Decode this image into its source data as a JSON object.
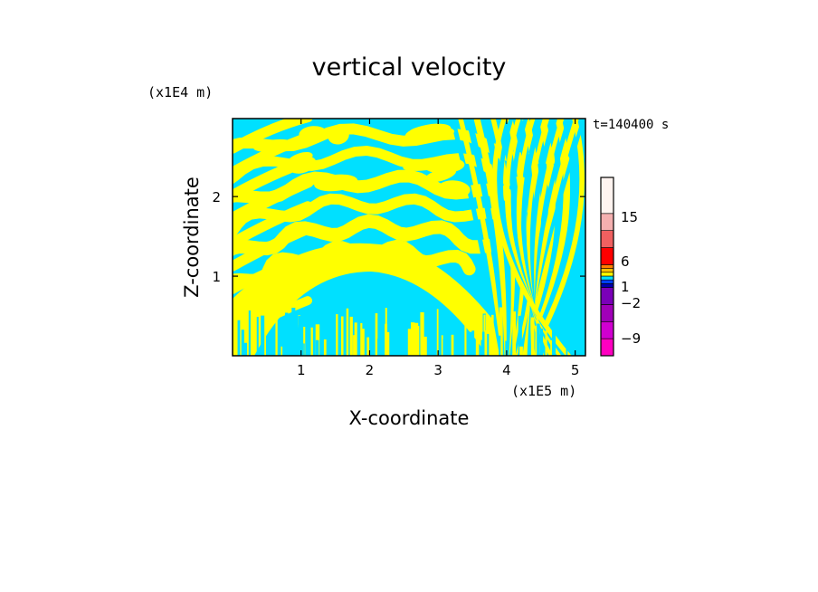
{
  "chart_data": {
    "type": "heatmap",
    "title": "vertical velocity",
    "xlabel": "X-coordinate",
    "ylabel": "Z-coordinate",
    "x_unit": "(x1E5 m)",
    "y_unit": "(x1E4 m)",
    "time_label": "t=140400 s",
    "x_ticks": [
      "1",
      "2",
      "3",
      "4",
      "5"
    ],
    "y_ticks": [
      "1",
      "2"
    ],
    "xlim": [
      0,
      5.15
    ],
    "ylim": [
      0,
      2.98
    ],
    "colorbar": {
      "levels": [
        {
          "color": "#ff00c0"
        },
        {
          "color": "#d000d0"
        },
        {
          "color": "#a000b8"
        },
        {
          "color": "#7a00b8"
        },
        {
          "color": "#0000b0"
        },
        {
          "color": "#0040ff"
        },
        {
          "color": "#00e0ff"
        },
        {
          "color": "#ffff00"
        },
        {
          "color": "#ffc000"
        },
        {
          "color": "#ff8000"
        },
        {
          "color": "#ff0000"
        },
        {
          "color": "#f06060"
        },
        {
          "color": "#f4b0b0"
        },
        {
          "color": "#fff4f0"
        }
      ],
      "labels": [
        "15",
        "6",
        "1",
        "-2",
        "-9"
      ]
    },
    "fill_colors": {
      "positive": "#ffff00",
      "negative": "#00e0ff"
    }
  }
}
